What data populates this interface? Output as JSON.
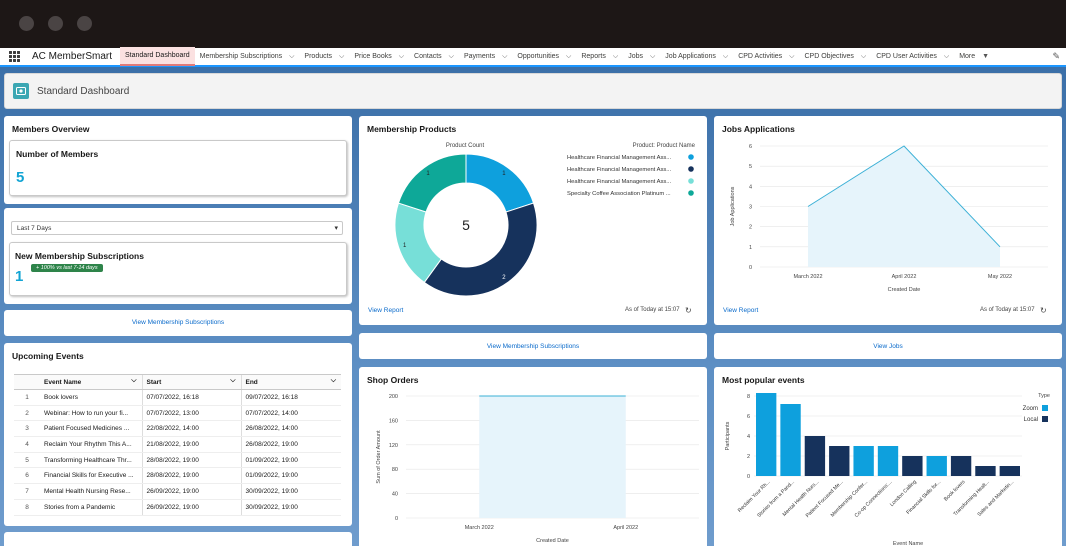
{
  "app": {
    "name": "AC MemberSmart",
    "nav": [
      {
        "label": "Standard Dashboard",
        "active": true,
        "chevron": false
      },
      {
        "label": "Membership Subscriptions",
        "chevron": true
      },
      {
        "label": "Products",
        "chevron": true
      },
      {
        "label": "Price Books",
        "chevron": true
      },
      {
        "label": "Contacts",
        "chevron": true
      },
      {
        "label": "Payments",
        "chevron": true
      },
      {
        "label": "Opportunities",
        "chevron": true
      },
      {
        "label": "Reports",
        "chevron": true
      },
      {
        "label": "Jobs",
        "chevron": true
      },
      {
        "label": "Job Applications",
        "chevron": true
      },
      {
        "label": "CPD Activities",
        "chevron": true
      },
      {
        "label": "CPD Objectives",
        "chevron": true
      },
      {
        "label": "CPD User Activities",
        "chevron": true
      },
      {
        "label": "More",
        "chevron": true,
        "chevron_glyph": "▼"
      }
    ]
  },
  "page": {
    "title": "Standard Dashboard"
  },
  "members_overview": {
    "title": "Members Overview",
    "number_of_members": {
      "label": "Number of Members",
      "value": "5"
    },
    "filter": {
      "value": "Last 7 Days"
    },
    "new_subscriptions": {
      "label": "New Membership Subscriptions",
      "value": "1",
      "badge": "+ 100% vs last 7-14 days"
    },
    "link": "View Membership Subscriptions"
  },
  "upcoming_events": {
    "title": "Upcoming Events",
    "columns": [
      "Event Name",
      "Start",
      "End"
    ],
    "rows": [
      {
        "n": "1",
        "name": "Book lovers",
        "start": "07/07/2022, 16:18",
        "end": "09/07/2022, 16:18"
      },
      {
        "n": "2",
        "name": "Webinar: How to run your fi...",
        "start": "07/07/2022, 13:00",
        "end": "07/07/2022, 14:00"
      },
      {
        "n": "3",
        "name": "Patient Focused Medicines ...",
        "start": "22/08/2022, 14:00",
        "end": "26/08/2022, 14:00"
      },
      {
        "n": "4",
        "name": "Reclaim Your Rhythm This A...",
        "start": "21/08/2022, 19:00",
        "end": "26/08/2022, 19:00"
      },
      {
        "n": "5",
        "name": "Transforming Healthcare Thr...",
        "start": "28/08/2022, 19:00",
        "end": "01/09/2022, 19:00"
      },
      {
        "n": "6",
        "name": "Financial Skills for Executive ...",
        "start": "28/08/2022, 19:00",
        "end": "01/09/2022, 19:00"
      },
      {
        "n": "7",
        "name": "Mental Health Nursing Rese...",
        "start": "26/09/2022, 19:00",
        "end": "30/09/2022, 19:00"
      },
      {
        "n": "8",
        "name": "Stories from a Pandemic",
        "start": "26/09/2022, 19:00",
        "end": "30/09/2022, 19:00"
      }
    ]
  },
  "membership_products": {
    "title": "Membership Products",
    "view_report": "View Report",
    "as_of": "As of Today at 15:07",
    "link": "View Membership Subscriptions",
    "chart_data": {
      "type": "pie",
      "title": "Product Count",
      "legend_title": "Product: Product Name",
      "legend_placement": "right",
      "total_label": "5",
      "slices": [
        {
          "name": "Healthcare Financial Management Ass...",
          "value": 1,
          "color": "#0ea0dd"
        },
        {
          "name": "Healthcare Financial Management Ass...",
          "value": 2,
          "color": "#16325c"
        },
        {
          "name": "Healthcare Financial Management Ass...",
          "value": 1,
          "color": "#77dfd8"
        },
        {
          "name": "Specialty Coffee Association Platinum ...",
          "value": 1,
          "color": "#0ea898"
        }
      ]
    }
  },
  "jobs_applications": {
    "title": "Jobs Applications",
    "view_report": "View Report",
    "as_of": "As of Today at 15:07",
    "link": "View Jobs",
    "chart_data": {
      "type": "area",
      "categories": [
        "March 2022",
        "April 2022",
        "May 2022"
      ],
      "values": [
        3,
        6,
        1
      ],
      "xlabel": "Created Date",
      "ylabel": "Job Applications",
      "ylim": [
        0,
        6
      ],
      "yticks": [
        0,
        1,
        2,
        3,
        4,
        5,
        6
      ],
      "color": "#3bb0d6"
    }
  },
  "shop_orders": {
    "title": "Shop Orders",
    "chart_data": {
      "type": "area",
      "categories": [
        "March 2022",
        "April 2022"
      ],
      "values": [
        200,
        200
      ],
      "xlabel": "Created Date",
      "ylabel": "Sum of Order Amount",
      "ylim": [
        0,
        200
      ],
      "yticks": [
        0,
        40,
        80,
        120,
        160,
        200
      ],
      "color": "#3bb0d6"
    }
  },
  "popular_events": {
    "title": "Most popular events",
    "chart_data": {
      "type": "bar",
      "xlabel": "Event Name",
      "ylabel": "Participants",
      "ylim": [
        0,
        8
      ],
      "yticks": [
        0,
        2,
        4,
        6,
        8
      ],
      "legend_title": "Type",
      "legend_placement": "top-right",
      "legend": [
        {
          "name": "Zoom",
          "color": "#0ea0dd"
        },
        {
          "name": "Local",
          "color": "#16325c"
        }
      ],
      "categories": [
        "Reclaim Your Rh...",
        "Stories from a Pand...",
        "Mental Health Nurs...",
        "Patient Focused Me...",
        "Membership Confer...",
        "Co-op Connections:...",
        "London Calling",
        "Financial Skills for...",
        "Book lovers",
        "Transforming Healt...",
        "Sales and Marketin..."
      ],
      "series": [
        {
          "name": "",
          "values": [
            8.3,
            7.2,
            4,
            3,
            3,
            3,
            2,
            2,
            2,
            1,
            1
          ],
          "types": [
            "Zoom",
            "Zoom",
            "Local",
            "Local",
            "Zoom",
            "Zoom",
            "Local",
            "Zoom",
            "Local",
            "Local",
            "Local"
          ]
        }
      ]
    }
  }
}
